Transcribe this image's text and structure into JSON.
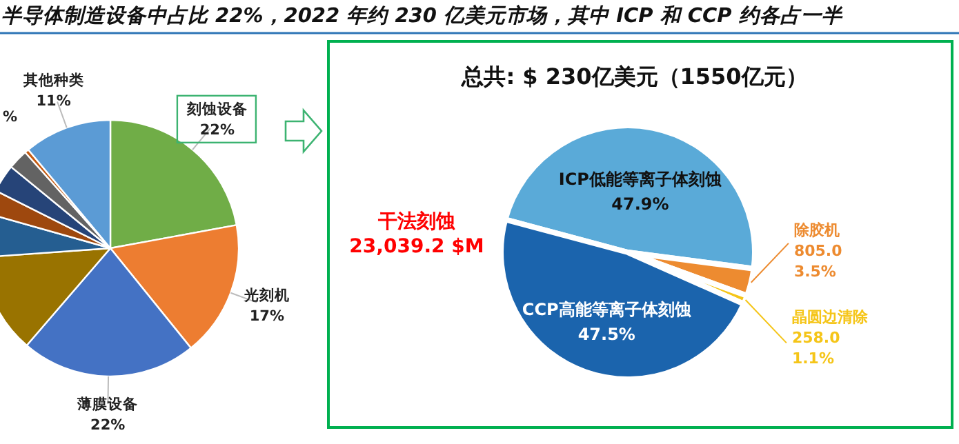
{
  "chart_data": [
    {
      "type": "pie",
      "title": "半导体制造设备中占比 22%，2022 年约 230 亿美元市场，其中 ICP 和 CCP 约各占一半",
      "categories": [
        "刻蚀设备",
        "光刻机",
        "薄膜设备",
        null,
        null,
        null,
        null,
        null,
        null,
        "其他种类"
      ],
      "values": [
        22,
        17,
        22,
        12.5,
        5.5,
        3,
        3.5,
        2.5,
        0.5,
        11
      ],
      "colors": [
        "#70ad47",
        "#ed7d31",
        "#4472c4",
        "#997300",
        "#255e91",
        "#9e480e",
        "#264478",
        "#636363",
        "#c55a11",
        "#5b9bd5"
      ],
      "value_labels": [
        "22%",
        "17%",
        "22%",
        null,
        null,
        null,
        null,
        null,
        null,
        "11%"
      ],
      "annotations": [
        "%"
      ]
    },
    {
      "type": "pie",
      "title": "总共: $ 230亿美元（1550亿元）",
      "categories": [
        "ICP低能等离子体刻蚀",
        "除胶机",
        "晶圆边清除",
        "CCP高能等离子体刻蚀"
      ],
      "values": [
        47.9,
        3.5,
        1.1,
        47.5
      ],
      "colors": [
        "#5aaad8",
        "#ed8b30",
        "#f5c518",
        "#1b64ad"
      ],
      "value_labels": [
        "47.9%",
        "805.0\n3.5%",
        "258.0\n1.1%",
        "47.5%"
      ],
      "annotations": [
        "干法刻蚀\n23,039.2 $M"
      ]
    }
  ]
}
